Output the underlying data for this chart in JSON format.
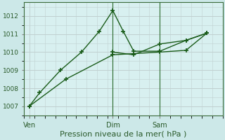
{
  "xlabel": "Pression niveau de la mer( hPa )",
  "background_color": "#cce8e8",
  "plot_bg_color": "#d8f0f0",
  "grid_color": "#c0d0d0",
  "line_color": "#1a5c1a",
  "vline_color": "#2a6a2a",
  "ylim": [
    1006.5,
    1012.75
  ],
  "yticks": [
    1007,
    1008,
    1009,
    1010,
    1011,
    1012
  ],
  "xtick_labels": [
    "Ven",
    "Dim",
    "Sam"
  ],
  "xtick_positions": [
    0.5,
    8.5,
    13.0
  ],
  "vline_positions": [
    8.5,
    13.0
  ],
  "line1_x": [
    0.5,
    1.5,
    3.5,
    5.5,
    7.2,
    8.5,
    9.5,
    10.5,
    13.0,
    15.5,
    17.5
  ],
  "line1_y": [
    1007.0,
    1007.75,
    1009.0,
    1010.0,
    1011.15,
    1012.3,
    1011.15,
    1010.05,
    1010.05,
    1010.65,
    1011.05
  ],
  "line2_x": [
    0.5,
    4.0,
    8.5,
    13.0,
    15.5,
    17.5
  ],
  "line2_y": [
    1007.0,
    1008.5,
    1009.85,
    1010.0,
    1010.1,
    1011.05
  ],
  "line3_x": [
    8.5,
    10.5,
    13.0,
    15.5,
    17.5
  ],
  "line3_y": [
    1010.0,
    1009.85,
    1010.45,
    1010.65,
    1011.05
  ],
  "figsize": [
    3.2,
    2.0
  ],
  "dpi": 100
}
